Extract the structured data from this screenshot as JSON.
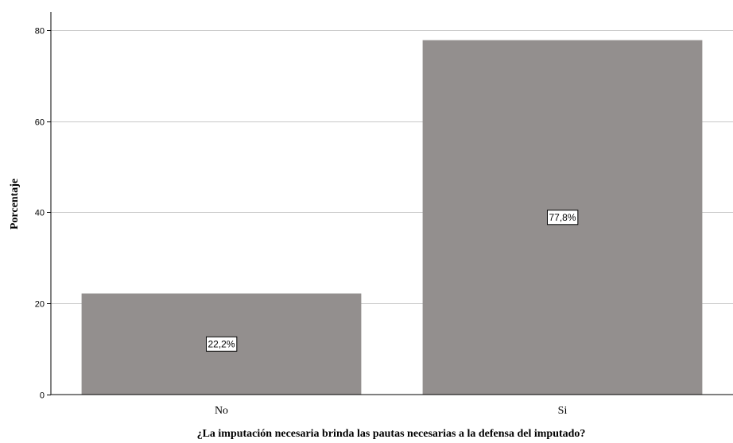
{
  "chart_data": {
    "type": "bar",
    "categories": [
      "No",
      "Si"
    ],
    "values": [
      22.2,
      77.8
    ],
    "data_labels": [
      "22,2%",
      "77,8%"
    ],
    "xlabel": "¿La imputación necesaria brinda las pautas necesarias a la defensa del imputado?",
    "ylabel": "Porcentaje",
    "ylim": [
      0,
      84
    ],
    "yticks": [
      0,
      20,
      40,
      60,
      80
    ],
    "grid": true,
    "colors": {
      "bar": "#938f8e",
      "grid": "#c8c8c8",
      "axis": "#000000"
    }
  }
}
